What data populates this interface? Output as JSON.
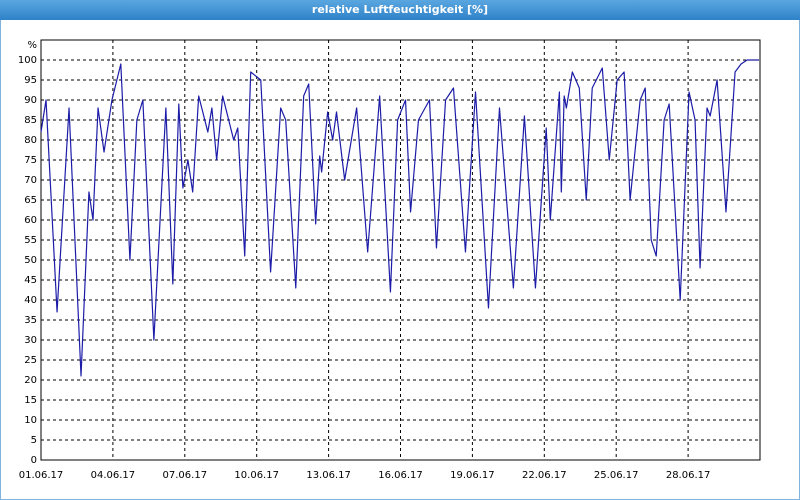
{
  "chart_data": {
    "type": "line",
    "title": "relative Luftfeuchtigkeit [%]",
    "y_unit": "%",
    "x": [
      0,
      0.21,
      0.67,
      1.17,
      1.67,
      2.0,
      2.17,
      2.38,
      2.63,
      2.96,
      3.33,
      3.71,
      4.0,
      4.25,
      4.71,
      5.21,
      5.5,
      5.75,
      5.92,
      6.13,
      6.33,
      6.58,
      6.96,
      7.13,
      7.33,
      7.58,
      8.04,
      8.21,
      8.5,
      8.75,
      9.17,
      9.58,
      10.0,
      10.21,
      10.63,
      10.96,
      11.17,
      11.46,
      11.63,
      11.71,
      11.96,
      12.17,
      12.33,
      12.67,
      13.17,
      13.63,
      14.13,
      14.58,
      14.88,
      15.21,
      15.42,
      15.75,
      16.21,
      16.5,
      16.88,
      17.21,
      17.71,
      18.13,
      18.67,
      19.13,
      19.71,
      20.17,
      20.63,
      21.08,
      21.25,
      21.63,
      21.71,
      21.83,
      21.92,
      22.17,
      22.46,
      22.75,
      23.0,
      23.42,
      23.71,
      24.04,
      24.33,
      24.58,
      25.0,
      25.21,
      25.46,
      25.67,
      26.0,
      26.21,
      26.67,
      27.04,
      27.29,
      27.5,
      27.79,
      27.92,
      28.21,
      28.58,
      28.96,
      29.21,
      29.46,
      29.96
    ],
    "series": [
      {
        "name": "relative Luftfeuchtigkeit",
        "color": "#1c1ca8",
        "values": [
          82,
          90,
          37,
          88,
          21,
          67,
          60,
          88,
          77,
          90,
          99,
          50,
          85,
          90,
          30,
          88,
          44,
          89,
          68,
          75,
          67,
          91,
          82,
          88,
          75,
          91,
          80,
          83,
          51,
          97,
          95,
          47,
          88,
          85,
          43,
          91,
          94,
          59,
          76,
          72,
          87,
          80,
          87,
          70,
          88,
          52,
          91,
          42,
          85,
          90,
          62,
          85,
          90,
          53,
          90,
          93,
          52,
          92,
          38,
          88,
          43,
          86,
          43,
          83,
          60,
          92,
          67,
          91,
          88,
          97,
          93,
          65,
          93,
          98,
          75,
          95,
          97,
          65,
          90,
          93,
          55,
          51,
          85,
          89,
          40,
          92,
          85,
          48,
          88,
          86,
          95,
          62,
          97,
          99,
          100,
          100
        ]
      }
    ],
    "xlim": [
      0,
      30
    ],
    "xticks": [
      {
        "value": 0,
        "label": "01.06.17"
      },
      {
        "value": 3,
        "label": "04.06.17"
      },
      {
        "value": 6,
        "label": "07.06.17"
      },
      {
        "value": 9,
        "label": "10.06.17"
      },
      {
        "value": 12,
        "label": "13.06.17"
      },
      {
        "value": 15,
        "label": "16.06.17"
      },
      {
        "value": 18,
        "label": "19.06.17"
      },
      {
        "value": 21,
        "label": "22.06.17"
      },
      {
        "value": 24,
        "label": "25.06.17"
      },
      {
        "value": 27,
        "label": "28.06.17"
      }
    ],
    "ylim": [
      0,
      105
    ],
    "yticks": [
      0,
      5,
      10,
      15,
      20,
      25,
      30,
      35,
      40,
      45,
      50,
      55,
      60,
      65,
      70,
      75,
      80,
      85,
      90,
      95,
      100
    ],
    "grid": true
  }
}
